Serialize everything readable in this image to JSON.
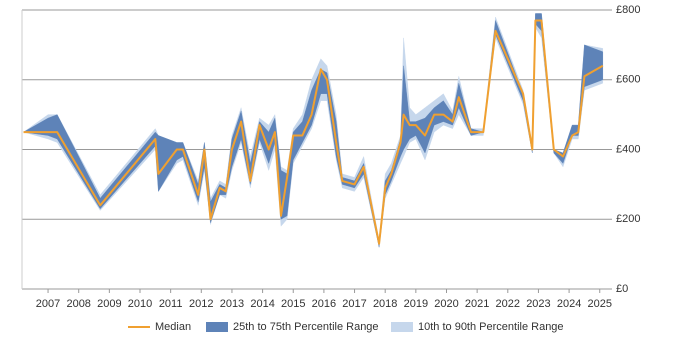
{
  "chart_data": {
    "type": "line",
    "x": [
      2006.2,
      2007.0,
      2007.3,
      2008.7,
      2010.5,
      2010.6,
      2011.2,
      2011.4,
      2011.9,
      2012.1,
      2012.3,
      2012.6,
      2012.8,
      2013.0,
      2013.3,
      2013.6,
      2013.9,
      2014.2,
      2014.4,
      2014.6,
      2014.8,
      2015.0,
      2015.3,
      2015.6,
      2015.9,
      2016.1,
      2016.4,
      2016.6,
      2017.0,
      2017.3,
      2017.8,
      2018.0,
      2018.2,
      2018.5,
      2018.6,
      2018.8,
      2019.0,
      2019.3,
      2019.6,
      2019.9,
      2020.2,
      2020.4,
      2020.8,
      2021.2,
      2021.6,
      2022.5,
      2022.8,
      2022.9,
      2023.1,
      2023.5,
      2023.8,
      2024.1,
      2024.3,
      2024.5,
      2025.1
    ],
    "series": [
      {
        "name": "Median",
        "color": "#f0a030",
        "values": [
          450,
          450,
          450,
          240,
          430,
          330,
          400,
          400,
          270,
          400,
          200,
          290,
          280,
          400,
          480,
          310,
          470,
          400,
          450,
          210,
          320,
          440,
          440,
          500,
          630,
          600,
          420,
          310,
          300,
          350,
          130,
          290,
          330,
          420,
          500,
          470,
          470,
          440,
          500,
          500,
          480,
          550,
          450,
          450,
          740,
          560,
          400,
          770,
          770,
          400,
          380,
          440,
          450,
          610,
          640
        ]
      },
      {
        "name": "25th to 75th Percentile Range",
        "color": "#5e83b8",
        "lower": [
          450,
          440,
          430,
          230,
          410,
          280,
          370,
          380,
          250,
          350,
          190,
          270,
          270,
          350,
          430,
          300,
          430,
          360,
          420,
          200,
          210,
          370,
          420,
          470,
          560,
          560,
          380,
          300,
          290,
          330,
          120,
          270,
          310,
          380,
          400,
          430,
          440,
          390,
          470,
          480,
          470,
          520,
          440,
          450,
          730,
          540,
          390,
          760,
          740,
          390,
          360,
          440,
          440,
          580,
          600
        ],
        "upper": [
          450,
          490,
          500,
          260,
          450,
          440,
          420,
          420,
          300,
          420,
          250,
          300,
          290,
          430,
          510,
          360,
          480,
          450,
          490,
          340,
          330,
          450,
          480,
          570,
          630,
          620,
          480,
          320,
          310,
          360,
          130,
          310,
          340,
          430,
          640,
          480,
          480,
          490,
          520,
          540,
          500,
          590,
          460,
          450,
          770,
          560,
          410,
          790,
          790,
          400,
          390,
          470,
          470,
          700,
          680
        ]
      },
      {
        "name": "10th to 90th Percentile Range",
        "color": "#c6d7ec",
        "lower": [
          450,
          430,
          420,
          225,
          400,
          280,
          360,
          370,
          240,
          340,
          185,
          270,
          260,
          340,
          420,
          290,
          420,
          340,
          400,
          180,
          200,
          360,
          410,
          460,
          540,
          540,
          370,
          290,
          280,
          320,
          120,
          260,
          300,
          360,
          380,
          420,
          430,
          370,
          450,
          470,
          460,
          500,
          440,
          440,
          720,
          530,
          390,
          750,
          720,
          390,
          350,
          430,
          430,
          570,
          590
        ],
        "upper": [
          450,
          500,
          500,
          270,
          460,
          440,
          420,
          420,
          310,
          420,
          260,
          310,
          300,
          440,
          520,
          380,
          490,
          470,
          500,
          350,
          340,
          460,
          500,
          600,
          660,
          640,
          500,
          330,
          320,
          380,
          140,
          330,
          360,
          440,
          720,
          520,
          500,
          520,
          540,
          560,
          510,
          610,
          460,
          460,
          780,
          570,
          410,
          790,
          790,
          400,
          390,
          470,
          470,
          700,
          690
        ]
      }
    ],
    "xlim": [
      2006.15,
      2025.4
    ],
    "xticks": [
      2007,
      2008,
      2009,
      2010,
      2011,
      2012,
      2013,
      2014,
      2015,
      2016,
      2017,
      2018,
      2019,
      2020,
      2021,
      2022,
      2023,
      2024,
      2025
    ],
    "ylim": [
      0,
      800
    ],
    "yticks": [
      {
        "value": 0,
        "label": "£0"
      },
      {
        "value": 200,
        "label": "£200"
      },
      {
        "value": 400,
        "label": "£400"
      },
      {
        "value": 600,
        "label": "£600"
      },
      {
        "value": 800,
        "label": "£800"
      }
    ],
    "grid": true
  }
}
